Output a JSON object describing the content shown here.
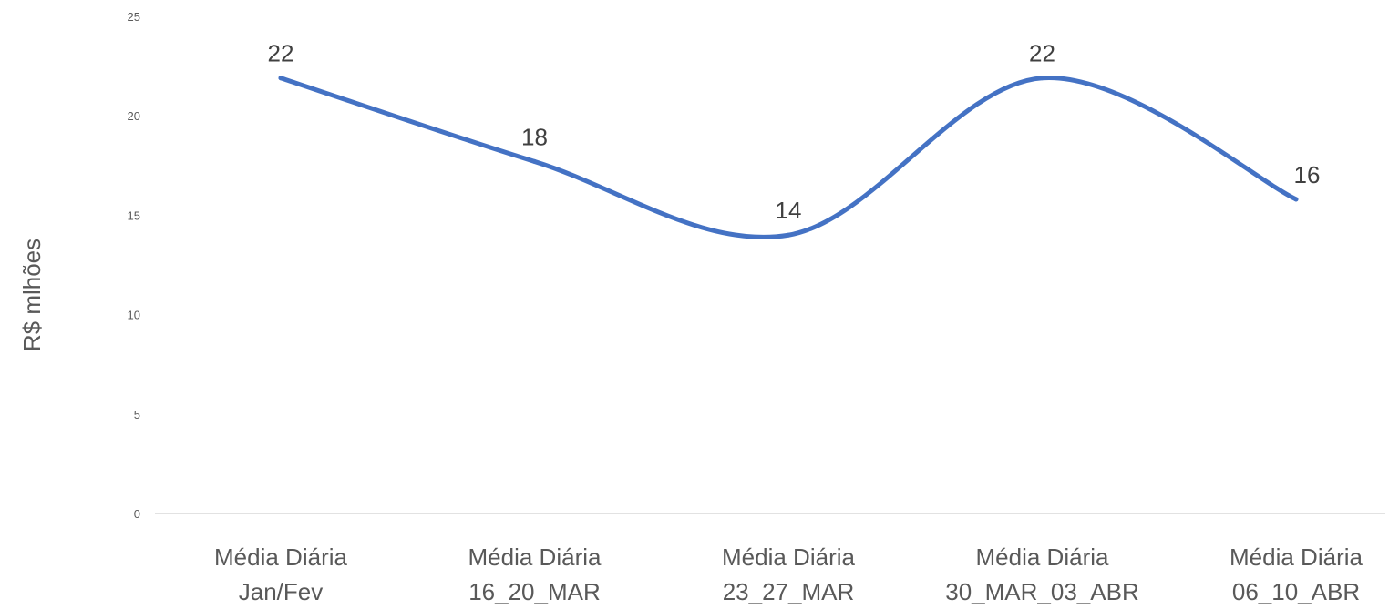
{
  "chart_data": {
    "type": "line",
    "title": "",
    "xlabel": "",
    "ylabel": "R$ mlhões",
    "ylim": [
      0,
      25
    ],
    "yticks": [
      0,
      5,
      10,
      15,
      20,
      25
    ],
    "grid": false,
    "smooth": true,
    "categories": [
      [
        "Média Diária",
        "Jan/Fev"
      ],
      [
        "Média Diária",
        "16_20_MAR"
      ],
      [
        "Média Diária",
        "23_27_MAR"
      ],
      [
        "Média Diária",
        "30_MAR_03_ABR"
      ],
      [
        "Média Diária",
        "06_10_ABR"
      ]
    ],
    "series": [
      {
        "values": [
          21.9,
          17.7,
          14.0,
          21.9,
          15.8
        ],
        "data_labels": [
          "22",
          "18",
          "14",
          "22",
          "16"
        ],
        "color": "#4472C4"
      }
    ],
    "colors": {
      "axis_line": "#D9D9D9",
      "tick_text": "#595959",
      "data_label_text": "#404040"
    }
  }
}
